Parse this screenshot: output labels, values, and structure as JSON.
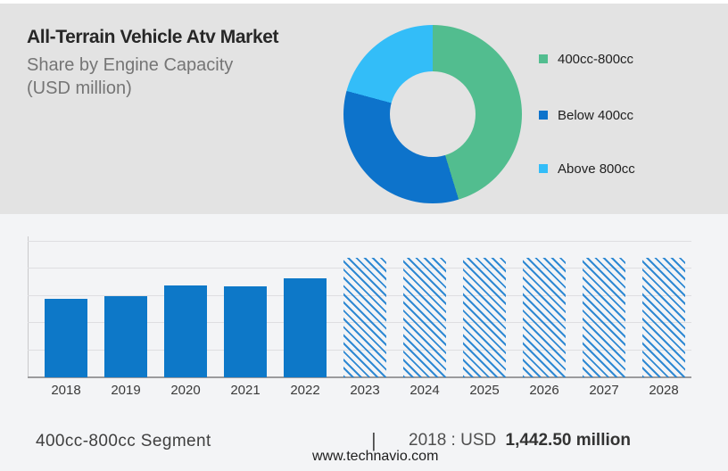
{
  "header": {
    "title": "All-Terrain Vehicle Atv Market",
    "subtitle_line1": "Share by Engine Capacity",
    "subtitle_line2": "(USD million)"
  },
  "colors": {
    "segment_green": "#52bd8f",
    "segment_blue": "#0d73cb",
    "segment_light_blue": "#33bdf8",
    "bar_blue": "#0d78c8",
    "top_background": "#e3e3e3",
    "bottom_background": "#f3f4f6"
  },
  "chart_data": [
    {
      "type": "pie",
      "subtype": "donut",
      "title": "Share by Engine Capacity (USD million)",
      "legend_position": "right",
      "segments": [
        {
          "label": "400cc-800cc",
          "color": "#52bd8f",
          "share_pct": 45.3
        },
        {
          "label": "Below 400cc",
          "color": "#0d73cb",
          "share_pct": 33.9
        },
        {
          "label": "Above 800cc",
          "color": "#33bdf8",
          "share_pct": 20.8
        }
      ]
    },
    {
      "type": "bar",
      "title": "400cc-800cc Segment (USD million)",
      "categories": [
        "2018",
        "2019",
        "2020",
        "2021",
        "2022",
        "2023",
        "2024",
        "2025",
        "2026",
        "2027",
        "2028"
      ],
      "series": [
        {
          "name": "400cc-800cc Segment",
          "values": [
            1442.5,
            1490,
            1688,
            1672,
            1820,
            2195,
            2195,
            2195,
            2195,
            2195,
            2195
          ],
          "values_note": "only 2018 labeled on screen (USD 1,442.50 million); other values estimated from bar heights"
        }
      ],
      "forecast_from": "2023",
      "forecast_style": "diagonal-hatch",
      "grid": true,
      "anchor": {
        "year": "2018",
        "value": 1442.5
      }
    }
  ],
  "footer": {
    "segment_label": "400cc-800cc Segment",
    "separator": "|",
    "value_prefix": "2018 : USD",
    "value_bold": "1,442.50 million",
    "website": "www.technavio.com"
  }
}
